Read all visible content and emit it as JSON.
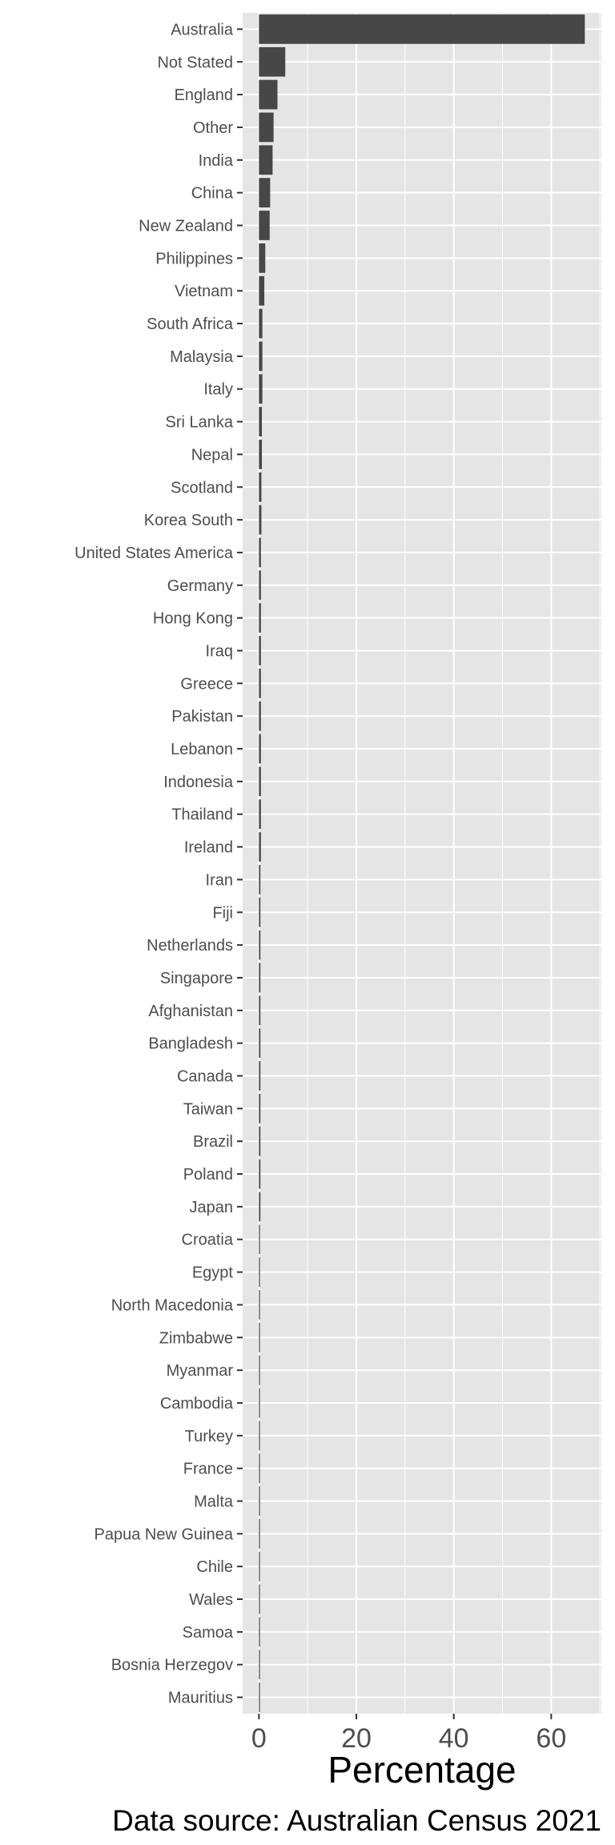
{
  "chart_data": {
    "type": "bar",
    "orientation": "horizontal",
    "categories": [
      "Australia",
      "Not Stated",
      "England",
      "Other",
      "India",
      "China",
      "New Zealand",
      "Philippines",
      "Vietnam",
      "South Africa",
      "Malaysia",
      "Italy",
      "Sri Lanka",
      "Nepal",
      "Scotland",
      "Korea South",
      "United States America",
      "Germany",
      "Hong Kong",
      "Iraq",
      "Greece",
      "Pakistan",
      "Lebanon",
      "Indonesia",
      "Thailand",
      "Ireland",
      "Iran",
      "Fiji",
      "Netherlands",
      "Singapore",
      "Afghanistan",
      "Bangladesh",
      "Canada",
      "Taiwan",
      "Brazil",
      "Poland",
      "Japan",
      "Croatia",
      "Egypt",
      "North Macedonia",
      "Zimbabwe",
      "Myanmar",
      "Cambodia",
      "Turkey",
      "France",
      "Malta",
      "Papua New Guinea",
      "Chile",
      "Wales",
      "Samoa",
      "Bosnia Herzegov",
      "Mauritius"
    ],
    "values": [
      66.9,
      5.4,
      3.8,
      3.0,
      2.8,
      2.3,
      2.2,
      1.3,
      1.1,
      0.7,
      0.7,
      0.7,
      0.6,
      0.6,
      0.5,
      0.5,
      0.4,
      0.4,
      0.4,
      0.4,
      0.4,
      0.4,
      0.4,
      0.4,
      0.4,
      0.4,
      0.3,
      0.3,
      0.3,
      0.3,
      0.3,
      0.3,
      0.3,
      0.3,
      0.3,
      0.3,
      0.3,
      0.2,
      0.2,
      0.2,
      0.2,
      0.2,
      0.2,
      0.2,
      0.2,
      0.2,
      0.2,
      0.2,
      0.2,
      0.2,
      0.2,
      0.2
    ],
    "xlabel": "Percentage",
    "ylabel": "",
    "xlim": [
      -3.35,
      70.3
    ],
    "xticks": [
      0,
      20,
      40,
      60
    ],
    "grid": true,
    "bar_color": "#474747",
    "panel_color": "#e5e5e5",
    "grid_color": "#ffffff",
    "caption": "Data source: Australian Census 2021"
  }
}
